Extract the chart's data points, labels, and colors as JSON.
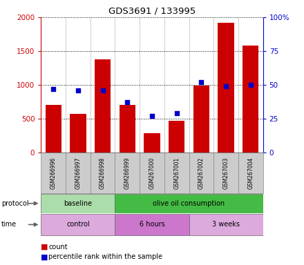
{
  "title": "GDS3691 / 133995",
  "samples": [
    "GSM266996",
    "GSM266997",
    "GSM266998",
    "GSM266999",
    "GSM267000",
    "GSM267001",
    "GSM267002",
    "GSM267003",
    "GSM267004"
  ],
  "counts": [
    700,
    570,
    1380,
    700,
    285,
    465,
    990,
    1920,
    1580
  ],
  "percentile_ranks": [
    47,
    46,
    46,
    37,
    27,
    29,
    52,
    49,
    50
  ],
  "left_ylim": [
    0,
    2000
  ],
  "right_ylim": [
    0,
    100
  ],
  "left_yticks": [
    0,
    500,
    1000,
    1500,
    2000
  ],
  "right_yticks": [
    0,
    25,
    50,
    75,
    100
  ],
  "right_yticklabels": [
    "0",
    "25",
    "50",
    "75",
    "100%"
  ],
  "bar_color": "#cc0000",
  "dot_color": "#0000cc",
  "protocol_groups": [
    {
      "label": "baseline",
      "start": 0,
      "end": 3,
      "color": "#aaddaa"
    },
    {
      "label": "olive oil consumption",
      "start": 3,
      "end": 9,
      "color": "#44bb44"
    }
  ],
  "time_groups": [
    {
      "label": "control",
      "start": 0,
      "end": 3,
      "color": "#ddaadd"
    },
    {
      "label": "6 hours",
      "start": 3,
      "end": 6,
      "color": "#cc77cc"
    },
    {
      "label": "3 weeks",
      "start": 6,
      "end": 9,
      "color": "#ddaadd"
    }
  ],
  "legend_count_label": "count",
  "legend_pct_label": "percentile rank within the sample",
  "background_color": "#ffffff",
  "left_axis_color": "#cc0000",
  "right_axis_color": "#0000cc"
}
